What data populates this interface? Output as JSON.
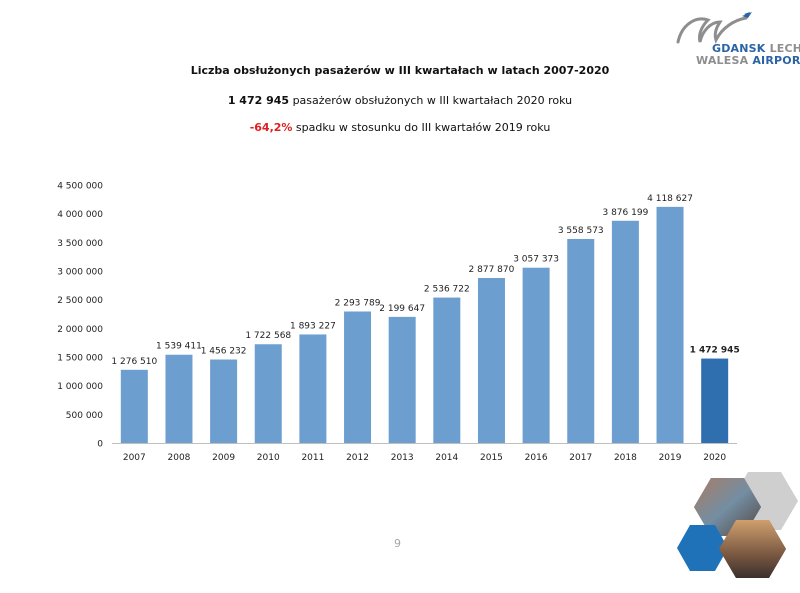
{
  "header": {
    "title": "Liczba obsłużonych pasażerów w III kwartałach w latach 2007-2020",
    "summary_value": "1 472 945",
    "summary_text": " pasażerów obsłużonych w III kwartałach 2020 roku",
    "change_value": "-64,2%",
    "change_text": " spadku w stosunku do III kwartałów 2019 roku"
  },
  "logo": {
    "line1_a": "GDANSK ",
    "line1_b": "LECH",
    "line2_a": "WALESA ",
    "line2_b": "AIRPORT."
  },
  "page_number": "9",
  "colors": {
    "bar": "#6c9fd0",
    "bar_highlight": "#2f6fb0",
    "accent_red": "#e02020",
    "brand_blue": "#2a64a5"
  },
  "chart_data": {
    "type": "bar",
    "title": "Liczba obsłużonych pasażerów w III kwartałach w latach 2007-2020",
    "xlabel": "",
    "ylabel": "",
    "ylim": [
      0,
      4500000
    ],
    "grid": false,
    "yticks": [
      0,
      500000,
      1000000,
      1500000,
      2000000,
      2500000,
      3000000,
      3500000,
      4000000,
      4500000
    ],
    "ytick_labels": [
      "0",
      "500 000",
      "1 000 000",
      "1 500 000",
      "2 000 000",
      "2 500 000",
      "3 000 000",
      "3 500 000",
      "4 000 000",
      "4 500 000"
    ],
    "categories": [
      "2007",
      "2008",
      "2009",
      "2010",
      "2011",
      "2012",
      "2013",
      "2014",
      "2015",
      "2016",
      "2017",
      "2018",
      "2019",
      "2020"
    ],
    "values": [
      1276510,
      1539411,
      1456232,
      1722568,
      1893227,
      2293789,
      2199647,
      2536722,
      2877870,
      3057373,
      3558573,
      3876199,
      4118627,
      1472945
    ],
    "data_labels": [
      "1 276 510",
      "1 539 411",
      "1 456 232",
      "1 722 568",
      "1 893 227",
      "2 293 789",
      "2 199 647",
      "2 536 722",
      "2 877 870",
      "3 057 373",
      "3 558 573",
      "3 876 199",
      "4 118 627",
      "1 472 945"
    ],
    "highlight_index": 13
  }
}
